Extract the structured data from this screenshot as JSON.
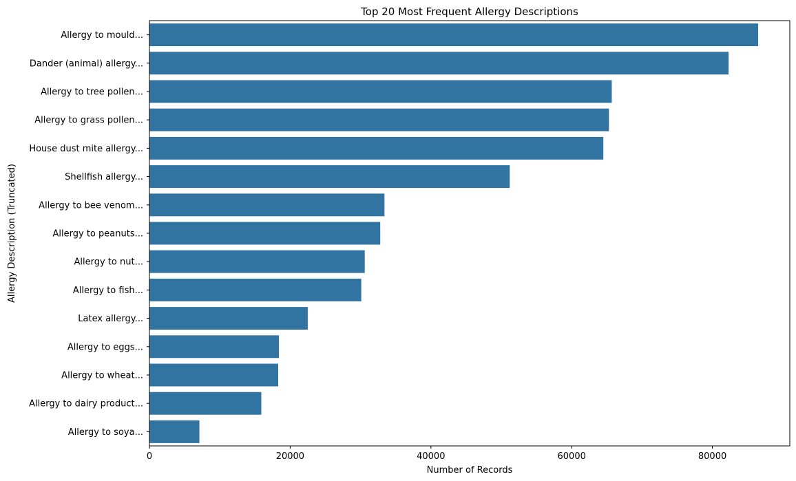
{
  "chart_data": {
    "type": "bar",
    "orientation": "horizontal",
    "title": "Top 20 Most Frequent Allergy Descriptions",
    "xlabel": "Number of Records",
    "ylabel": "Allergy Description (Truncated)",
    "xlim": [
      0,
      91000
    ],
    "xticks": [
      0,
      20000,
      40000,
      60000,
      80000
    ],
    "grid": false,
    "bar_color": "#3274a1",
    "categories": [
      "Allergy to mould...",
      "Dander (animal) allergy...",
      "Allergy to tree pollen...",
      "Allergy to grass pollen...",
      "House dust mite allergy...",
      "Shellfish allergy...",
      "Allergy to bee venom...",
      "Allergy to peanuts...",
      "Allergy to nut...",
      "Allergy to fish...",
      "Latex allergy...",
      "Allergy to eggs...",
      "Allergy to wheat...",
      "Allergy to dairy product...",
      "Allergy to soya..."
    ],
    "values": [
      86500,
      82300,
      65700,
      65300,
      64500,
      51200,
      33400,
      32800,
      30600,
      30100,
      22500,
      18400,
      18300,
      15900,
      7100
    ]
  }
}
